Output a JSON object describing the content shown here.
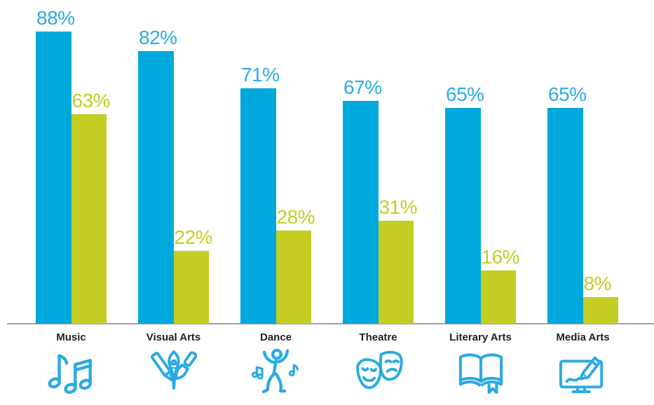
{
  "chart_data": {
    "type": "bar",
    "title": "",
    "xlabel": "",
    "ylabel": "",
    "ylim": [
      0,
      100
    ],
    "grid": false,
    "legend": "none",
    "value_label_format": "percent",
    "categories": [
      "Music",
      "Visual Arts",
      "Dance",
      "Theatre",
      "Literary Arts",
      "Media Arts"
    ],
    "series": [
      {
        "name": "blue-series",
        "color": "#00A9DC",
        "values": [
          88,
          82,
          71,
          67,
          65,
          65
        ],
        "labels": [
          "88%",
          "82%",
          "71%",
          "67%",
          "65%",
          "65%"
        ]
      },
      {
        "name": "green-series",
        "color": "#C3CD23",
        "values": [
          63,
          22,
          28,
          31,
          16,
          8
        ],
        "labels": [
          "63%",
          "22%",
          "28%",
          "31%",
          "16%",
          "8%"
        ]
      }
    ]
  },
  "icons": [
    "music-notes-icon",
    "art-tools-icon",
    "dancer-icon",
    "theatre-masks-icon",
    "open-book-icon",
    "monitor-pencil-icon"
  ],
  "colors": {
    "bar_blue": "#00A9DC",
    "bar_green": "#C3CD23",
    "label_blue": "#2BACE2",
    "label_green": "#C3CD23",
    "category_text": "#231F20",
    "axis_line": "#9D9FA2",
    "icon_blue": "#29ABE2"
  }
}
